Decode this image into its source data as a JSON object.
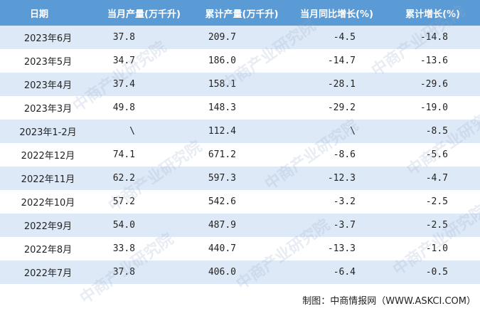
{
  "table": {
    "header": [
      "日期",
      "当月产量(万千升)",
      "累计产量(万千升)",
      "当月同比增长(%)",
      "累计增长(%)"
    ],
    "rows": [
      [
        "2023年6月",
        "37.8",
        "209.7",
        "-4.5",
        "-14.8"
      ],
      [
        "2023年5月",
        "34.7",
        "186.0",
        "-14.7",
        "-13.6"
      ],
      [
        "2023年4月",
        "37.4",
        "158.1",
        "-28.1",
        "-29.6"
      ],
      [
        "2023年3月",
        "49.8",
        "148.3",
        "-29.2",
        "-19.0"
      ],
      [
        "2023年1-2月",
        "\\",
        "112.4",
        "\\",
        "-8.5"
      ],
      [
        "2022年12月",
        "74.1",
        "671.2",
        "-8.6",
        "-5.6"
      ],
      [
        "2022年11月",
        "62.2",
        "597.3",
        "-12.3",
        "-4.7"
      ],
      [
        "2022年10月",
        "57.2",
        "542.6",
        "-3.2",
        "-2.5"
      ],
      [
        "2022年9月",
        "54.0",
        "487.9",
        "-3.7",
        "-2.5"
      ],
      [
        "2022年8月",
        "33.8",
        "440.7",
        "-13.3",
        "-1.0"
      ],
      [
        "2022年7月",
        "37.8",
        "406.0",
        "-6.4",
        "-0.5"
      ]
    ]
  },
  "watermark": "中商产业研究院",
  "footer": "制图：中商情报网（WWW.ASKCI.COM）"
}
